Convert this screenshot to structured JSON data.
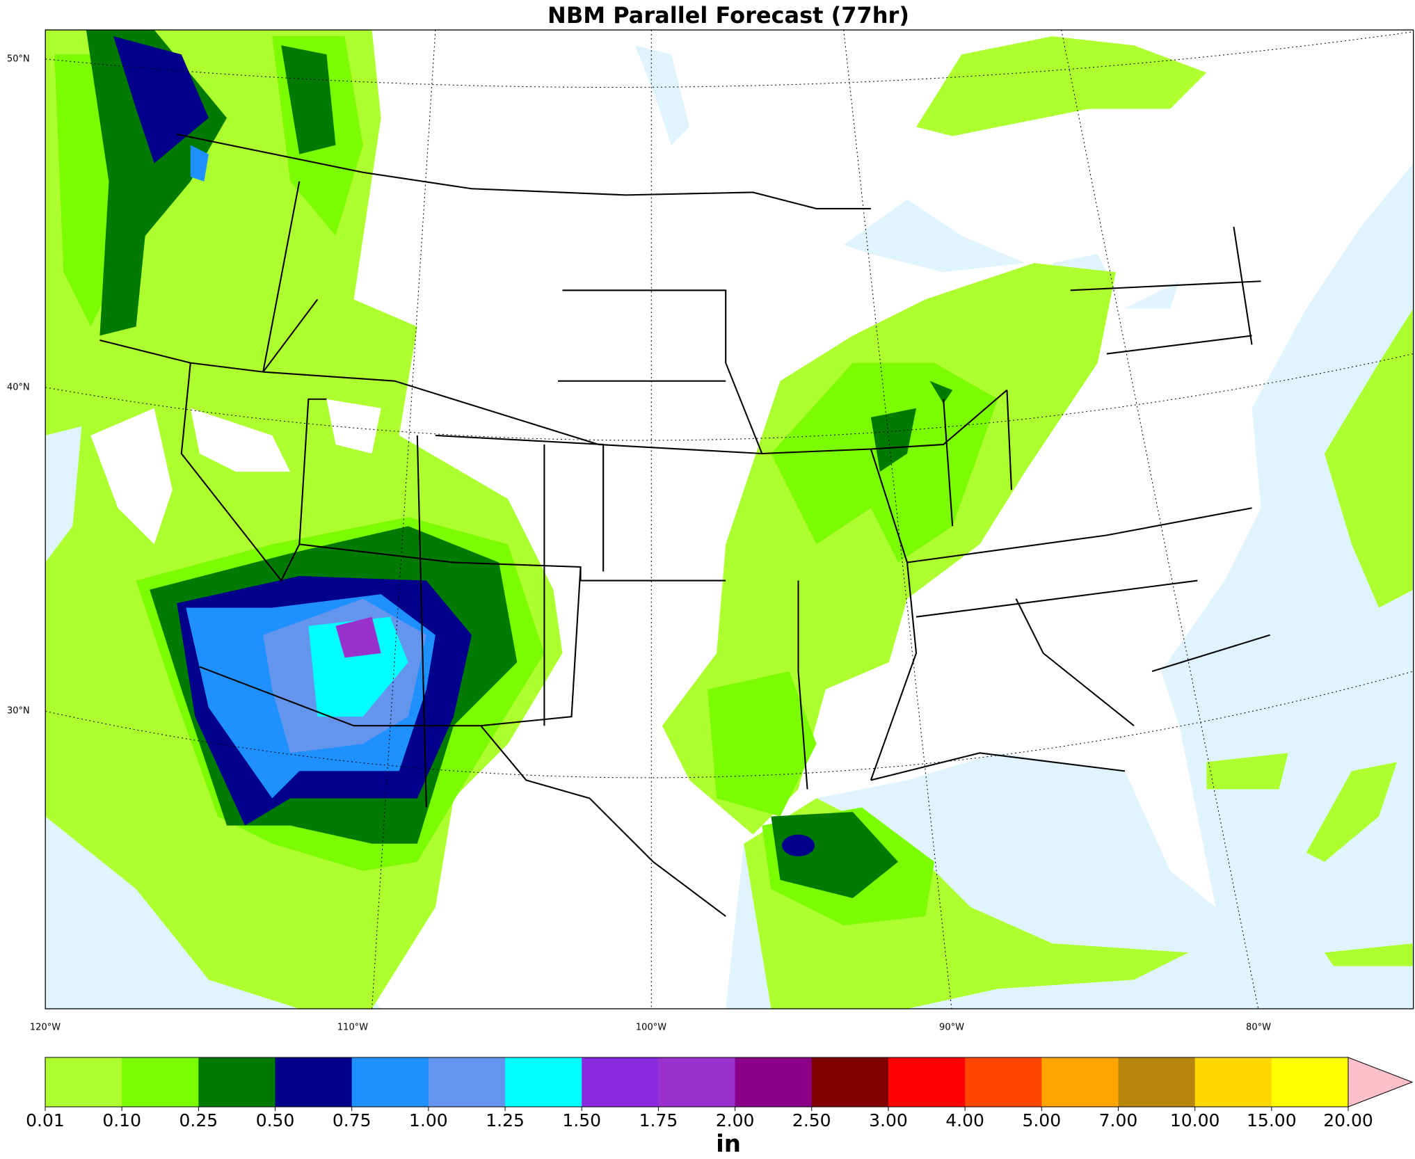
{
  "title": "NBM Parallel Forecast (77hr)",
  "map": {
    "lat_labels": [
      "50°N",
      "40°N",
      "30°N"
    ],
    "lon_labels": [
      "120°W",
      "110°W",
      "100°W",
      "90°W",
      "80°W"
    ]
  },
  "colorbar": {
    "unit": "in",
    "levels": [
      {
        "value": 0.01,
        "label": "0.01"
      },
      {
        "value": 0.1,
        "label": "0.10"
      },
      {
        "value": 0.25,
        "label": "0.25"
      },
      {
        "value": 0.5,
        "label": "0.50"
      },
      {
        "value": 0.75,
        "label": "0.75"
      },
      {
        "value": 1,
        "label": "1.00"
      },
      {
        "value": 1.25,
        "label": "1.25"
      },
      {
        "value": 1.5,
        "label": "1.50"
      },
      {
        "value": 1.75,
        "label": "1.75"
      },
      {
        "value": 2,
        "label": "2.00"
      },
      {
        "value": 2.5,
        "label": "2.50"
      },
      {
        "value": 3,
        "label": "3.00"
      },
      {
        "value": 4,
        "label": "4.00"
      },
      {
        "value": 5,
        "label": "5.00"
      },
      {
        "value": 7,
        "label": "7.00"
      },
      {
        "value": 10,
        "label": "10.00"
      },
      {
        "value": 15,
        "label": "15.00"
      },
      {
        "value": 20,
        "label": "20.00"
      }
    ],
    "colors": [
      "#adff2f",
      "#7cfc00",
      "#007a00",
      "#00008b",
      "#1e90ff",
      "#6495ed",
      "#00ffff",
      "#8a2be2",
      "#9932cc",
      "#8b008b",
      "#800000",
      "#ff0000",
      "#ff4500",
      "#ffa500",
      "#b8860b",
      "#ffd700",
      "#ffff00"
    ],
    "extend_color": "#ffc0cb"
  }
}
